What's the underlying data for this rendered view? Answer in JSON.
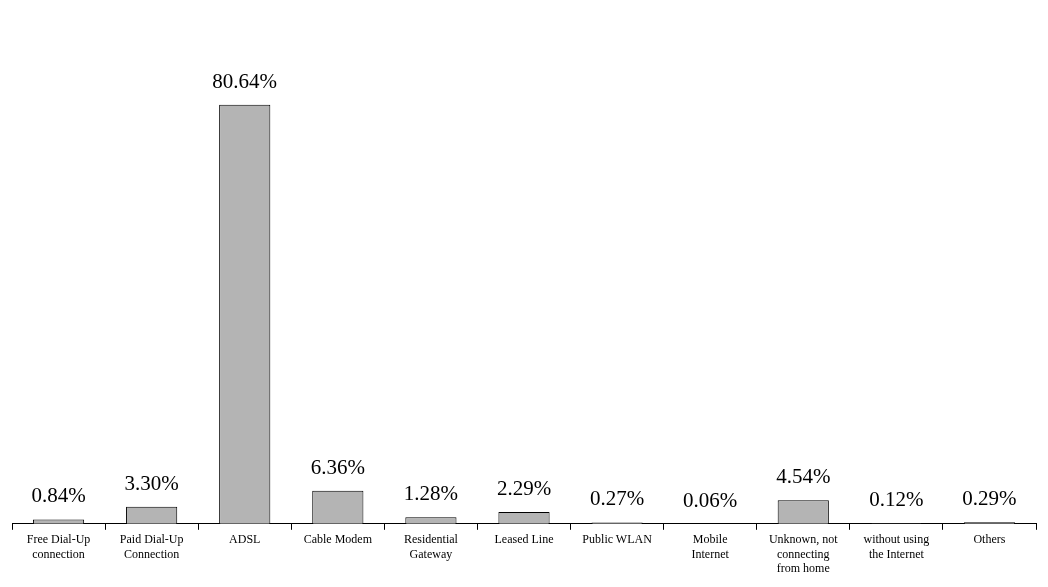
{
  "chart_data": {
    "type": "bar",
    "categories": [
      "Free Dial-Up connection",
      "Paid Dial-Up Connection",
      "ADSL",
      "Cable Modem",
      "Residential Gateway",
      "Leased Line",
      "Public WLAN",
      "Mobile Internet",
      "Unknown, not connecting from home",
      "without using the Internet",
      "Others"
    ],
    "values": [
      0.84,
      3.3,
      80.64,
      6.36,
      1.28,
      2.29,
      0.27,
      0.06,
      4.54,
      0.12,
      0.29
    ],
    "value_labels": [
      "0.84%",
      "3.30%",
      "80.64%",
      "6.36%",
      "1.28%",
      "2.29%",
      "0.27%",
      "0.06%",
      "4.54%",
      "0.12%",
      "0.29%"
    ],
    "color": "#b4b4b4"
  }
}
